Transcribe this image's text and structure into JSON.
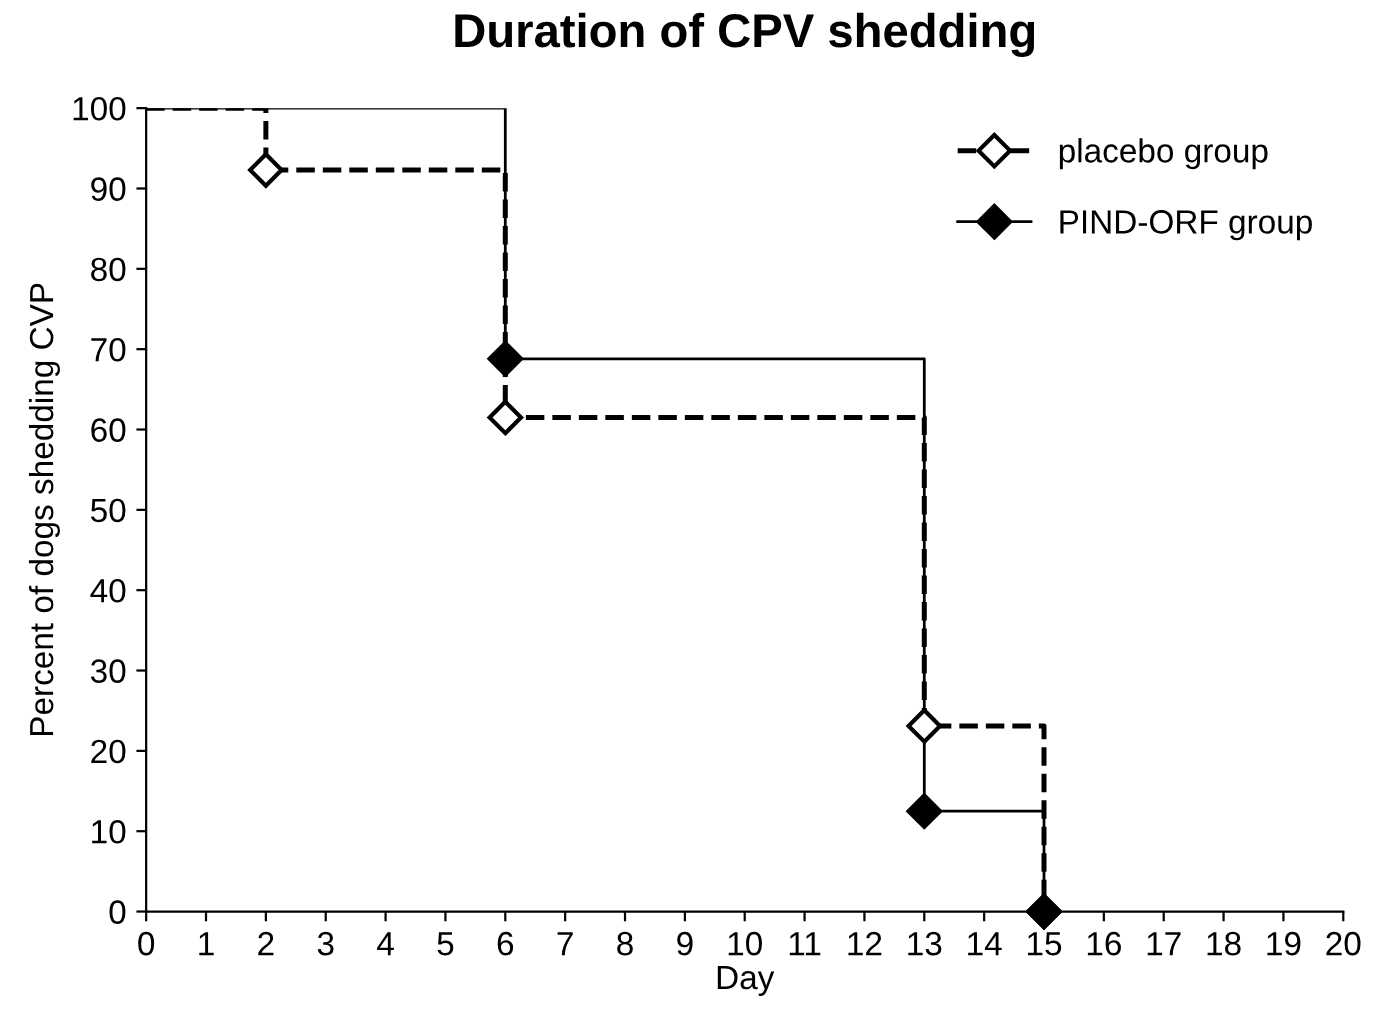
{
  "chart_data": {
    "type": "step",
    "title": "Duration of CPV shedding",
    "xlabel": "Day",
    "ylabel": "Percent of dogs shedding CVP",
    "series": [
      {
        "name": "placebo group",
        "color": "#000000",
        "x": [
          0,
          2,
          6,
          13,
          15
        ],
        "values": [
          100,
          92.3,
          61.5,
          23.1,
          0
        ],
        "line_style": "dashed",
        "marker": "diamond"
      },
      {
        "name": "PIND-ORF group",
        "color": "#000000",
        "x": [
          0,
          6,
          13,
          15
        ],
        "values": [
          100,
          68.8,
          12.5,
          0
        ],
        "line_style": "solid",
        "marker": "diamond"
      }
    ],
    "xlim": [
      0,
      20
    ],
    "xticks": [
      0,
      1,
      2,
      3,
      4,
      5,
      6,
      7,
      8,
      9,
      10,
      11,
      12,
      13,
      14,
      15,
      16,
      17,
      18,
      19,
      20
    ],
    "ylim": [
      0,
      100
    ],
    "yticks": [
      0,
      10,
      20,
      30,
      40,
      50,
      60,
      70,
      80,
      90,
      100
    ],
    "grid": false,
    "legend": "top right"
  }
}
